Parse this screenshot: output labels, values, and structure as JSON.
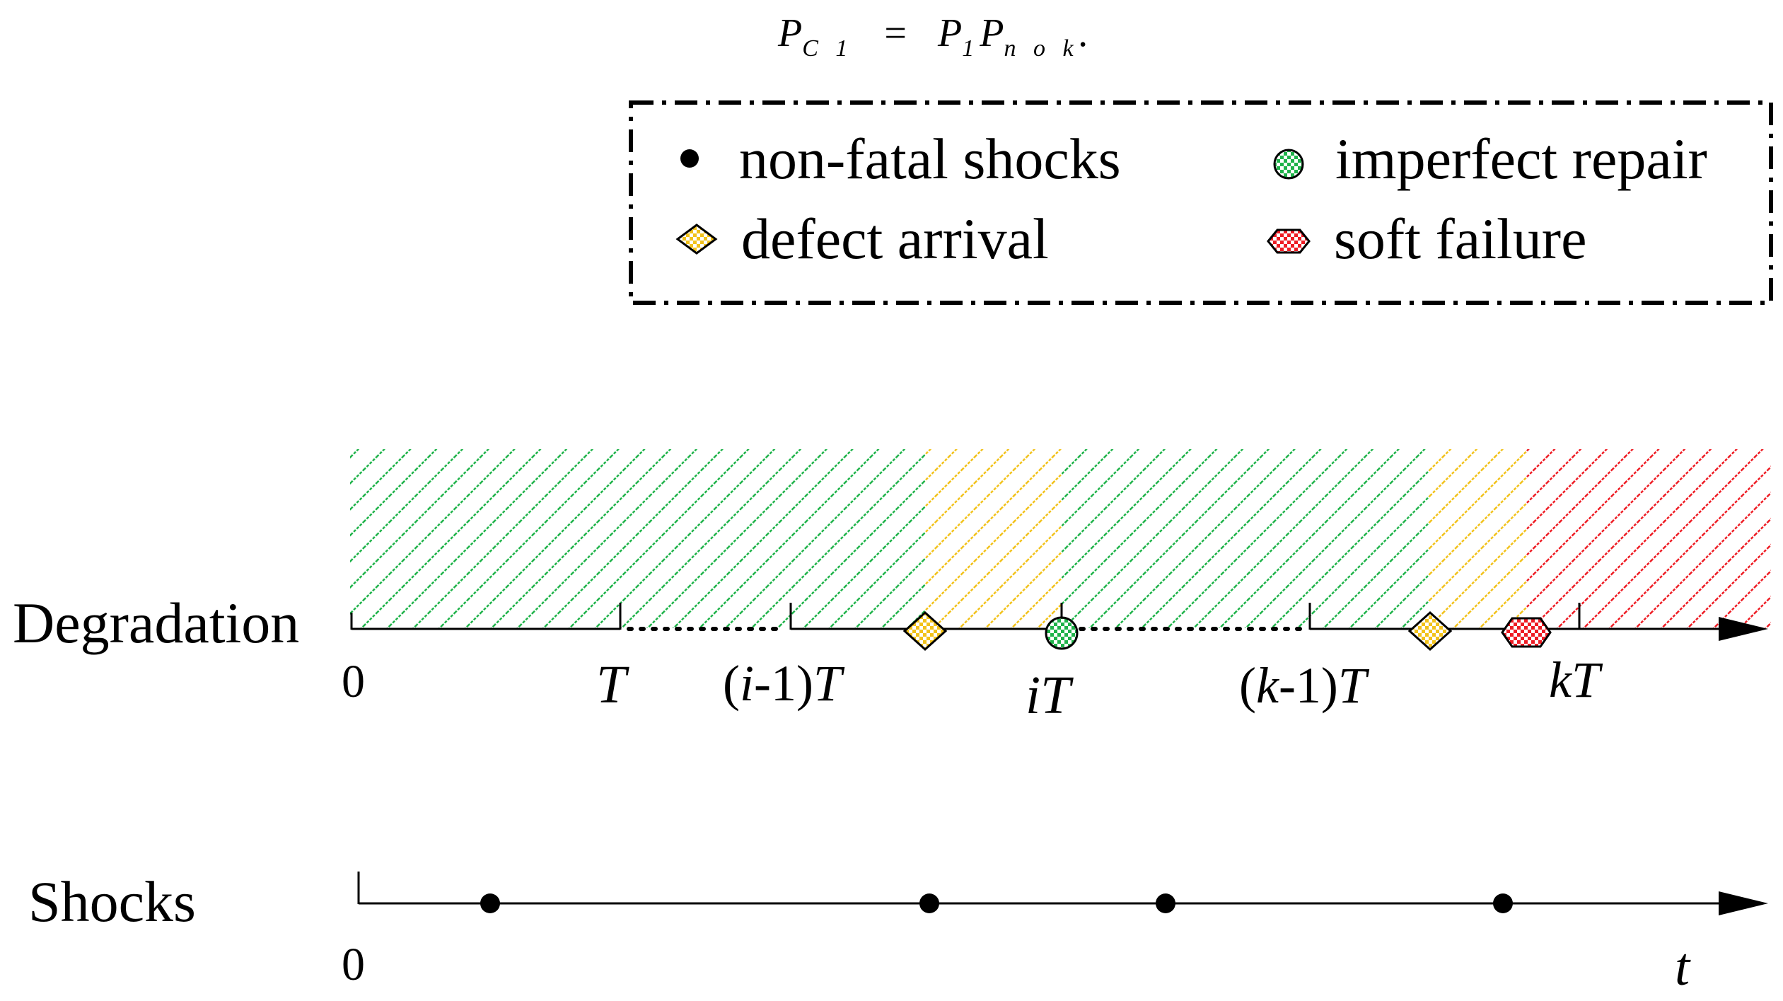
{
  "formula": {
    "lhs_symbol": "P",
    "lhs_subscript": "C 1",
    "operator": "=",
    "rhs_symbol_1": "P",
    "rhs_subscript_1": "1",
    "rhs_symbol_2": "P",
    "rhs_subscript_2": "n o k",
    "trailing": "."
  },
  "legend": {
    "items": [
      {
        "label": "non-fatal shocks",
        "marker": "filled-circle-icon"
      },
      {
        "label": "imperfect repair",
        "marker": "green-checkered-circle-icon"
      },
      {
        "label": "defect arrival",
        "marker": "yellow-checkered-diamond-icon"
      },
      {
        "label": "soft failure",
        "marker": "red-checkered-hexagon-icon"
      }
    ]
  },
  "degradation": {
    "row_label": "Degradation",
    "ticks": [
      "0",
      "T",
      "(i-1)T",
      "iT",
      "(k-1)T",
      "kT"
    ],
    "tick_parts": {
      "i_minus_1": {
        "open": "(",
        "var": "i",
        "rest": "-1)",
        "T": "T"
      },
      "iT": {
        "var": "i",
        "T": "T"
      },
      "k_minus_1": {
        "open": "(",
        "var": "k",
        "rest": "-1)",
        "T": "T"
      },
      "kT": {
        "var": "k",
        "T": "T"
      }
    },
    "segments": [
      {
        "state": "normal",
        "color": "#1fb34a"
      },
      {
        "state": "defective",
        "color": "#f2c21b"
      },
      {
        "state": "normal",
        "color": "#1fb34a"
      },
      {
        "state": "defective",
        "color": "#f2c21b"
      },
      {
        "state": "failed",
        "color": "#ee1c24"
      }
    ]
  },
  "shocks": {
    "row_label": "Shocks",
    "origin_label": "0",
    "axis_label": "t",
    "shock_count": 4
  },
  "colors": {
    "normal": "#1fb34a",
    "defective": "#f2c21b",
    "failed": "#ee1c24",
    "ink": "#000000"
  }
}
